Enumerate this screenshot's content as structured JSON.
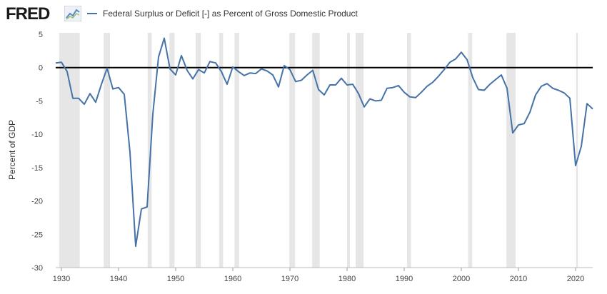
{
  "header": {
    "logo_text": "FRED",
    "logo_icon": "line-chart-icon",
    "legend_label": "Federal Surplus or Deficit [-] as Percent of Gross Domestic Product"
  },
  "colors": {
    "series": "#4572a7",
    "recession": "#e6e6e6",
    "zero_line": "#000000"
  },
  "chart_data": {
    "type": "line",
    "title": "Federal Surplus or Deficit [-] as Percent of Gross Domestic Product",
    "xlabel": "",
    "ylabel": "Percent of GDP",
    "xlim": [
      1929,
      2023
    ],
    "ylim": [
      -30,
      5
    ],
    "x_ticks": [
      1930,
      1940,
      1950,
      1960,
      1970,
      1980,
      1990,
      2000,
      2010,
      2020
    ],
    "y_ticks": [
      5,
      0,
      -5,
      -10,
      -15,
      -20,
      -25,
      -30
    ],
    "recessions": [
      [
        1929.6,
        1933.2
      ],
      [
        1937.4,
        1938.5
      ],
      [
        1945.1,
        1945.8
      ],
      [
        1948.9,
        1949.8
      ],
      [
        1953.5,
        1954.4
      ],
      [
        1957.6,
        1958.3
      ],
      [
        1960.3,
        1961.1
      ],
      [
        1969.9,
        1970.9
      ],
      [
        1973.9,
        1975.2
      ],
      [
        1980.0,
        1980.5
      ],
      [
        1981.5,
        1982.9
      ],
      [
        1990.5,
        1991.2
      ],
      [
        2001.2,
        2001.9
      ],
      [
        2007.9,
        2009.5
      ],
      [
        2020.1,
        2020.4
      ]
    ],
    "series": [
      {
        "name": "Federal Surplus or Deficit [-] as Percent of Gross Domestic Product",
        "x": [
          1929,
          1930,
          1931,
          1932,
          1933,
          1934,
          1935,
          1936,
          1937,
          1938,
          1939,
          1940,
          1941,
          1942,
          1943,
          1944,
          1945,
          1946,
          1947,
          1948,
          1949,
          1950,
          1951,
          1952,
          1953,
          1954,
          1955,
          1956,
          1957,
          1958,
          1959,
          1960,
          1961,
          1962,
          1963,
          1964,
          1965,
          1966,
          1967,
          1968,
          1969,
          1970,
          1971,
          1972,
          1973,
          1974,
          1975,
          1976,
          1977,
          1978,
          1979,
          1980,
          1981,
          1982,
          1983,
          1984,
          1985,
          1986,
          1987,
          1988,
          1989,
          1990,
          1991,
          1992,
          1993,
          1994,
          1995,
          1996,
          1997,
          1998,
          1999,
          2000,
          2001,
          2002,
          2003,
          2004,
          2005,
          2006,
          2007,
          2008,
          2009,
          2010,
          2011,
          2012,
          2013,
          2014,
          2015,
          2016,
          2017,
          2018,
          2019,
          2020,
          2021,
          2022,
          2023
        ],
        "values": [
          0.7,
          0.8,
          -0.6,
          -4.6,
          -4.6,
          -5.5,
          -3.9,
          -5.2,
          -2.5,
          -0.1,
          -3.2,
          -3.0,
          -4.0,
          -12.7,
          -26.8,
          -21.2,
          -20.9,
          -7.0,
          1.6,
          4.4,
          -0.2,
          -1.1,
          1.8,
          -0.4,
          -1.7,
          -0.3,
          -0.8,
          0.9,
          0.7,
          -0.6,
          -2.5,
          0.1,
          -0.6,
          -1.2,
          -0.8,
          -0.9,
          -0.2,
          -0.5,
          -1.1,
          -2.9,
          0.3,
          -0.3,
          -2.1,
          -1.9,
          -1.1,
          -0.4,
          -3.3,
          -4.1,
          -2.6,
          -2.6,
          -1.6,
          -2.6,
          -2.5,
          -3.9,
          -5.9,
          -4.7,
          -5.0,
          -4.9,
          -3.1,
          -3.0,
          -2.7,
          -3.7,
          -4.4,
          -4.5,
          -3.7,
          -2.8,
          -2.2,
          -1.3,
          -0.3,
          0.8,
          1.3,
          2.3,
          1.2,
          -1.5,
          -3.3,
          -3.4,
          -2.5,
          -1.8,
          -1.1,
          -3.1,
          -9.8,
          -8.6,
          -8.4,
          -6.7,
          -4.1,
          -2.8,
          -2.4,
          -3.1,
          -3.4,
          -3.8,
          -4.6,
          -14.7,
          -11.8,
          -5.4,
          -6.2
        ]
      }
    ]
  }
}
